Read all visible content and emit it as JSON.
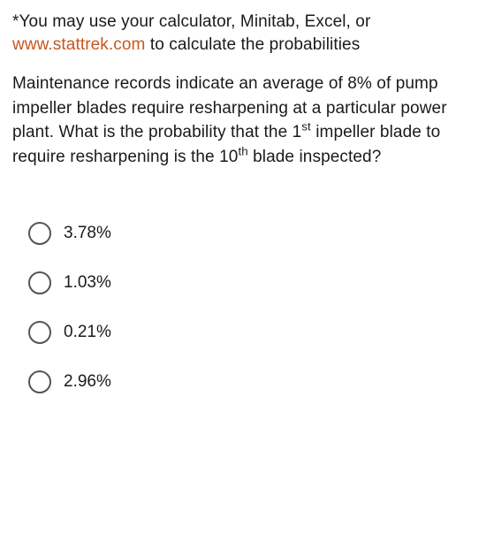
{
  "instruction": {
    "prefix": "*You may use your calculator, Minitab, Excel, or ",
    "link_text": "www.stattrek.com",
    "suffix": " to calculate the probabilities"
  },
  "question": {
    "part1": "Maintenance records indicate an average of 8% of pump impeller blades require resharpening at a particular power plant.  What is the probability that the 1",
    "sup1": "st",
    "part2": " impeller blade to require resharpening is the 10",
    "sup2": "th",
    "part3": " blade inspected?"
  },
  "options": [
    {
      "label": "3.78%"
    },
    {
      "label": "1.03%"
    },
    {
      "label": "0.21%"
    },
    {
      "label": "2.96%"
    }
  ],
  "styling": {
    "link_color": "#c9561d",
    "text_color": "#1a1a1a",
    "radio_border_color": "#555555",
    "background_color": "#ffffff",
    "font_size": 19,
    "radio_size": 26
  }
}
